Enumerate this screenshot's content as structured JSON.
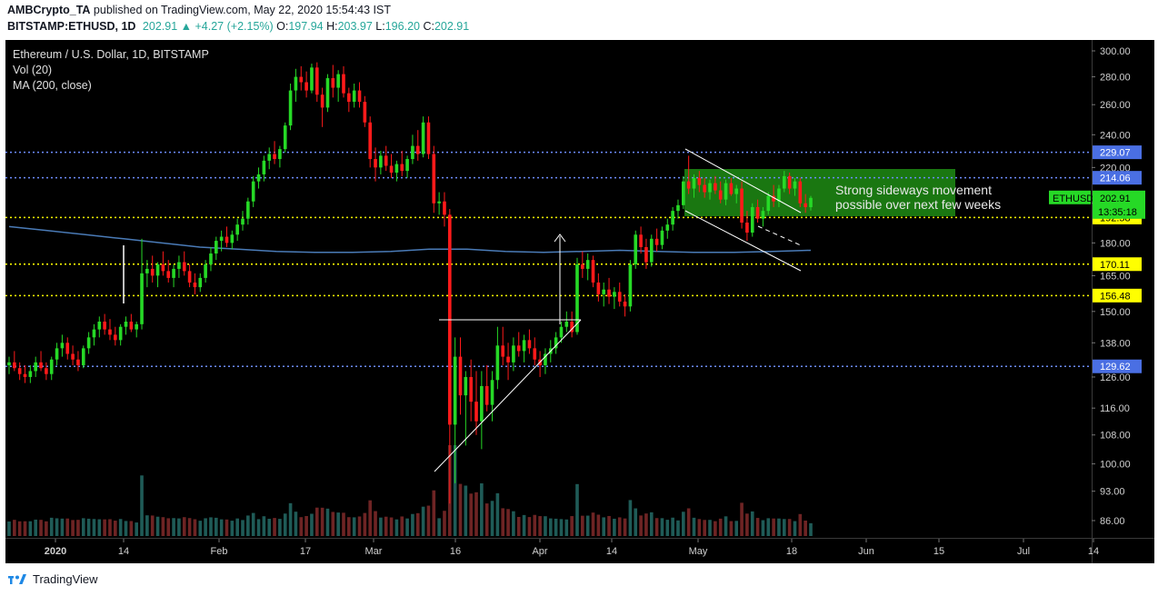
{
  "header": {
    "publisher": "AMBCrypto_TA",
    "published_text": "published on TradingView.com, May 22, 2020 15:54:43 IST",
    "symbol": "BITSTAMP:ETHUSD, 1D",
    "last": "202.91",
    "change": "+4.27 (+2.15%)",
    "o_label": "O:",
    "o": "197.94",
    "h_label": "H:",
    "h": "203.97",
    "l_label": "L:",
    "l": "196.20",
    "c_label": "C:",
    "c": "202.91"
  },
  "legend": {
    "title": "Ethereum / U.S. Dollar, 1D, BITSTAMP",
    "vol": "Vol (20)",
    "ma": "MA (200, close)"
  },
  "footer": {
    "brand": "TradingView"
  },
  "colors": {
    "up": "#26d926",
    "down": "#ff1a1a",
    "vol_up": "#1f5b57",
    "vol_down": "#6e2424",
    "ma": "#4a7bb7",
    "blue_level": "#6d8cff",
    "yellow_level": "#ffff00",
    "zone": "#1e8c14",
    "white": "#ffffff"
  },
  "chart_data": {
    "type": "candlestick",
    "title": "Ethereum / U.S. Dollar, 1D, BITSTAMP",
    "x_tick_labels": [
      "2020",
      "14",
      "Feb",
      "17",
      "Mar",
      "16",
      "Apr",
      "14",
      "May",
      "18",
      "Jun",
      "15",
      "Jul",
      "14"
    ],
    "y_tick_labels": [
      "300.00",
      "280.00",
      "260.00",
      "240.00",
      "220.00",
      "200.00",
      "180.00",
      "165.00",
      "150.00",
      "138.00",
      "126.00",
      "116.00",
      "108.00",
      "100.00",
      "93.00",
      "86.00"
    ],
    "y_range": [
      84,
      305
    ],
    "scale": "log",
    "levels": [
      {
        "value": 229.07,
        "label": "229.07",
        "style": "blue-dotted"
      },
      {
        "value": 214.06,
        "label": "214.06",
        "style": "blue-dotted"
      },
      {
        "value": 192.58,
        "label": "192.58",
        "style": "yellow-dotted"
      },
      {
        "value": 170.11,
        "label": "170.11",
        "style": "yellow-dotted"
      },
      {
        "value": 156.48,
        "label": "156.48",
        "style": "yellow-dotted"
      },
      {
        "value": 129.62,
        "label": "129.62",
        "style": "blue-dotted"
      }
    ],
    "last_price": {
      "label": "ETHUSD",
      "value": "202.91",
      "countdown": "13:35:18"
    },
    "annotation": [
      "Strong sideways movement",
      "possible over next few weeks"
    ],
    "candles": [
      {
        "o": 130,
        "h": 133,
        "l": 127,
        "c": 131
      },
      {
        "o": 131,
        "h": 135,
        "l": 128,
        "c": 129
      },
      {
        "o": 129,
        "h": 131,
        "l": 125,
        "c": 127
      },
      {
        "o": 127,
        "h": 130,
        "l": 124,
        "c": 126
      },
      {
        "o": 126,
        "h": 130,
        "l": 124,
        "c": 128
      },
      {
        "o": 128,
        "h": 133,
        "l": 126,
        "c": 131
      },
      {
        "o": 131,
        "h": 135,
        "l": 128,
        "c": 129
      },
      {
        "o": 129,
        "h": 131,
        "l": 125,
        "c": 127
      },
      {
        "o": 127,
        "h": 133,
        "l": 125,
        "c": 132
      },
      {
        "o": 132,
        "h": 138,
        "l": 130,
        "c": 136
      },
      {
        "o": 136,
        "h": 141,
        "l": 133,
        "c": 138
      },
      {
        "o": 138,
        "h": 140,
        "l": 132,
        "c": 134
      },
      {
        "o": 134,
        "h": 137,
        "l": 130,
        "c": 132
      },
      {
        "o": 132,
        "h": 135,
        "l": 128,
        "c": 130
      },
      {
        "o": 130,
        "h": 137,
        "l": 129,
        "c": 136
      },
      {
        "o": 136,
        "h": 142,
        "l": 134,
        "c": 140
      },
      {
        "o": 140,
        "h": 145,
        "l": 137,
        "c": 143
      },
      {
        "o": 143,
        "h": 148,
        "l": 140,
        "c": 146
      },
      {
        "o": 146,
        "h": 149,
        "l": 141,
        "c": 143
      },
      {
        "o": 143,
        "h": 147,
        "l": 139,
        "c": 141
      },
      {
        "o": 141,
        "h": 144,
        "l": 137,
        "c": 139
      },
      {
        "o": 139,
        "h": 145,
        "l": 137,
        "c": 144
      },
      {
        "o": 144,
        "h": 148,
        "l": 141,
        "c": 146
      },
      {
        "o": 146,
        "h": 149,
        "l": 142,
        "c": 143
      },
      {
        "o": 143,
        "h": 146,
        "l": 140,
        "c": 145
      },
      {
        "o": 145,
        "h": 182,
        "l": 143,
        "c": 166
      },
      {
        "o": 166,
        "h": 172,
        "l": 160,
        "c": 168
      },
      {
        "o": 168,
        "h": 174,
        "l": 162,
        "c": 165
      },
      {
        "o": 165,
        "h": 171,
        "l": 160,
        "c": 170
      },
      {
        "o": 170,
        "h": 176,
        "l": 165,
        "c": 167
      },
      {
        "o": 167,
        "h": 172,
        "l": 162,
        "c": 164
      },
      {
        "o": 164,
        "h": 170,
        "l": 160,
        "c": 168
      },
      {
        "o": 168,
        "h": 174,
        "l": 164,
        "c": 171
      },
      {
        "o": 171,
        "h": 176,
        "l": 165,
        "c": 167
      },
      {
        "o": 167,
        "h": 170,
        "l": 160,
        "c": 162
      },
      {
        "o": 162,
        "h": 166,
        "l": 157,
        "c": 160
      },
      {
        "o": 160,
        "h": 166,
        "l": 158,
        "c": 164
      },
      {
        "o": 164,
        "h": 172,
        "l": 162,
        "c": 170
      },
      {
        "o": 170,
        "h": 178,
        "l": 167,
        "c": 175
      },
      {
        "o": 175,
        "h": 183,
        "l": 172,
        "c": 181
      },
      {
        "o": 181,
        "h": 186,
        "l": 176,
        "c": 183
      },
      {
        "o": 183,
        "h": 188,
        "l": 178,
        "c": 180
      },
      {
        "o": 180,
        "h": 186,
        "l": 177,
        "c": 184
      },
      {
        "o": 184,
        "h": 192,
        "l": 181,
        "c": 189
      },
      {
        "o": 189,
        "h": 196,
        "l": 186,
        "c": 192
      },
      {
        "o": 192,
        "h": 203,
        "l": 189,
        "c": 201
      },
      {
        "o": 201,
        "h": 215,
        "l": 198,
        "c": 212
      },
      {
        "o": 212,
        "h": 220,
        "l": 208,
        "c": 216
      },
      {
        "o": 216,
        "h": 227,
        "l": 212,
        "c": 224
      },
      {
        "o": 224,
        "h": 232,
        "l": 219,
        "c": 228
      },
      {
        "o": 228,
        "h": 236,
        "l": 222,
        "c": 225
      },
      {
        "o": 225,
        "h": 233,
        "l": 220,
        "c": 231
      },
      {
        "o": 231,
        "h": 248,
        "l": 229,
        "c": 246
      },
      {
        "o": 246,
        "h": 275,
        "l": 243,
        "c": 270
      },
      {
        "o": 270,
        "h": 286,
        "l": 262,
        "c": 280
      },
      {
        "o": 280,
        "h": 288,
        "l": 270,
        "c": 276
      },
      {
        "o": 276,
        "h": 284,
        "l": 265,
        "c": 270
      },
      {
        "o": 270,
        "h": 290,
        "l": 268,
        "c": 287
      },
      {
        "o": 287,
        "h": 291,
        "l": 262,
        "c": 267
      },
      {
        "o": 267,
        "h": 272,
        "l": 245,
        "c": 258
      },
      {
        "o": 258,
        "h": 282,
        "l": 255,
        "c": 279
      },
      {
        "o": 279,
        "h": 289,
        "l": 265,
        "c": 272
      },
      {
        "o": 272,
        "h": 285,
        "l": 262,
        "c": 282
      },
      {
        "o": 282,
        "h": 288,
        "l": 265,
        "c": 268
      },
      {
        "o": 268,
        "h": 272,
        "l": 255,
        "c": 262
      },
      {
        "o": 262,
        "h": 275,
        "l": 258,
        "c": 270
      },
      {
        "o": 270,
        "h": 276,
        "l": 258,
        "c": 262
      },
      {
        "o": 262,
        "h": 266,
        "l": 245,
        "c": 248
      },
      {
        "o": 248,
        "h": 252,
        "l": 220,
        "c": 225
      },
      {
        "o": 225,
        "h": 232,
        "l": 212,
        "c": 220
      },
      {
        "o": 220,
        "h": 230,
        "l": 216,
        "c": 227
      },
      {
        "o": 227,
        "h": 233,
        "l": 218,
        "c": 221
      },
      {
        "o": 221,
        "h": 228,
        "l": 214,
        "c": 217
      },
      {
        "o": 217,
        "h": 224,
        "l": 212,
        "c": 222
      },
      {
        "o": 222,
        "h": 230,
        "l": 215,
        "c": 218
      },
      {
        "o": 218,
        "h": 227,
        "l": 214,
        "c": 225
      },
      {
        "o": 225,
        "h": 240,
        "l": 222,
        "c": 233
      },
      {
        "o": 233,
        "h": 243,
        "l": 224,
        "c": 228
      },
      {
        "o": 228,
        "h": 252,
        "l": 226,
        "c": 248
      },
      {
        "o": 248,
        "h": 252,
        "l": 225,
        "c": 228
      },
      {
        "o": 228,
        "h": 233,
        "l": 195,
        "c": 200
      },
      {
        "o": 200,
        "h": 206,
        "l": 194,
        "c": 201
      },
      {
        "o": 201,
        "h": 206,
        "l": 188,
        "c": 194
      },
      {
        "o": 194,
        "h": 197,
        "l": 90,
        "c": 111
      },
      {
        "o": 111,
        "h": 140,
        "l": 95,
        "c": 133
      },
      {
        "o": 133,
        "h": 140,
        "l": 114,
        "c": 120
      },
      {
        "o": 120,
        "h": 128,
        "l": 105,
        "c": 126
      },
      {
        "o": 126,
        "h": 132,
        "l": 112,
        "c": 118
      },
      {
        "o": 118,
        "h": 128,
        "l": 108,
        "c": 112
      },
      {
        "o": 112,
        "h": 128,
        "l": 104,
        "c": 123
      },
      {
        "o": 123,
        "h": 130,
        "l": 115,
        "c": 117
      },
      {
        "o": 117,
        "h": 128,
        "l": 112,
        "c": 125
      },
      {
        "o": 125,
        "h": 144,
        "l": 122,
        "c": 137
      },
      {
        "o": 137,
        "h": 144,
        "l": 130,
        "c": 133
      },
      {
        "o": 133,
        "h": 138,
        "l": 125,
        "c": 131
      },
      {
        "o": 131,
        "h": 140,
        "l": 128,
        "c": 137
      },
      {
        "o": 137,
        "h": 142,
        "l": 133,
        "c": 135
      },
      {
        "o": 135,
        "h": 141,
        "l": 131,
        "c": 139
      },
      {
        "o": 139,
        "h": 143,
        "l": 134,
        "c": 136
      },
      {
        "o": 136,
        "h": 140,
        "l": 130,
        "c": 132
      },
      {
        "o": 132,
        "h": 135,
        "l": 126,
        "c": 130
      },
      {
        "o": 130,
        "h": 136,
        "l": 127,
        "c": 134
      },
      {
        "o": 134,
        "h": 139,
        "l": 131,
        "c": 136
      },
      {
        "o": 136,
        "h": 142,
        "l": 134,
        "c": 140
      },
      {
        "o": 140,
        "h": 146,
        "l": 138,
        "c": 144
      },
      {
        "o": 144,
        "h": 150,
        "l": 142,
        "c": 146
      },
      {
        "o": 146,
        "h": 150,
        "l": 140,
        "c": 142
      },
      {
        "o": 142,
        "h": 173,
        "l": 141,
        "c": 170
      },
      {
        "o": 170,
        "h": 176,
        "l": 164,
        "c": 168
      },
      {
        "o": 168,
        "h": 175,
        "l": 163,
        "c": 172
      },
      {
        "o": 172,
        "h": 174,
        "l": 160,
        "c": 162
      },
      {
        "o": 162,
        "h": 166,
        "l": 154,
        "c": 157
      },
      {
        "o": 157,
        "h": 162,
        "l": 152,
        "c": 159
      },
      {
        "o": 159,
        "h": 164,
        "l": 153,
        "c": 156
      },
      {
        "o": 156,
        "h": 160,
        "l": 151,
        "c": 158
      },
      {
        "o": 158,
        "h": 162,
        "l": 152,
        "c": 154
      },
      {
        "o": 154,
        "h": 157,
        "l": 148,
        "c": 152
      },
      {
        "o": 152,
        "h": 172,
        "l": 150,
        "c": 170
      },
      {
        "o": 170,
        "h": 186,
        "l": 168,
        "c": 184
      },
      {
        "o": 184,
        "h": 188,
        "l": 175,
        "c": 178
      },
      {
        "o": 178,
        "h": 182,
        "l": 168,
        "c": 171
      },
      {
        "o": 171,
        "h": 184,
        "l": 169,
        "c": 182
      },
      {
        "o": 182,
        "h": 187,
        "l": 176,
        "c": 179
      },
      {
        "o": 179,
        "h": 188,
        "l": 177,
        "c": 186
      },
      {
        "o": 186,
        "h": 192,
        "l": 182,
        "c": 189
      },
      {
        "o": 189,
        "h": 198,
        "l": 186,
        "c": 196
      },
      {
        "o": 196,
        "h": 202,
        "l": 192,
        "c": 199
      },
      {
        "o": 199,
        "h": 215,
        "l": 197,
        "c": 212
      },
      {
        "o": 212,
        "h": 227,
        "l": 205,
        "c": 208
      },
      {
        "o": 208,
        "h": 216,
        "l": 203,
        "c": 214
      },
      {
        "o": 214,
        "h": 218,
        "l": 206,
        "c": 210
      },
      {
        "o": 210,
        "h": 214,
        "l": 203,
        "c": 206
      },
      {
        "o": 206,
        "h": 213,
        "l": 202,
        "c": 211
      },
      {
        "o": 211,
        "h": 215,
        "l": 205,
        "c": 207
      },
      {
        "o": 207,
        "h": 212,
        "l": 200,
        "c": 202
      },
      {
        "o": 202,
        "h": 213,
        "l": 199,
        "c": 211
      },
      {
        "o": 211,
        "h": 214,
        "l": 204,
        "c": 205
      },
      {
        "o": 205,
        "h": 210,
        "l": 200,
        "c": 208
      },
      {
        "o": 208,
        "h": 212,
        "l": 187,
        "c": 190
      },
      {
        "o": 190,
        "h": 196,
        "l": 181,
        "c": 185
      },
      {
        "o": 185,
        "h": 200,
        "l": 183,
        "c": 198
      },
      {
        "o": 198,
        "h": 202,
        "l": 190,
        "c": 192
      },
      {
        "o": 192,
        "h": 198,
        "l": 188,
        "c": 196
      },
      {
        "o": 196,
        "h": 206,
        "l": 194,
        "c": 204
      },
      {
        "o": 204,
        "h": 210,
        "l": 198,
        "c": 201
      },
      {
        "o": 201,
        "h": 210,
        "l": 198,
        "c": 208
      },
      {
        "o": 208,
        "h": 218,
        "l": 206,
        "c": 215
      },
      {
        "o": 215,
        "h": 217,
        "l": 205,
        "c": 208
      },
      {
        "o": 208,
        "h": 214,
        "l": 204,
        "c": 212
      },
      {
        "o": 212,
        "h": 214,
        "l": 198,
        "c": 200
      },
      {
        "o": 200,
        "h": 205,
        "l": 195,
        "c": 198
      },
      {
        "o": 197.94,
        "h": 203.97,
        "l": 196.2,
        "c": 202.91
      }
    ],
    "ma200": [
      188,
      186,
      184,
      182,
      180,
      178,
      177,
      176,
      175.5,
      175.5,
      176,
      177,
      177,
      176,
      175.5,
      176,
      176.5,
      176,
      175.5,
      175.5,
      176,
      176.5
    ]
  }
}
